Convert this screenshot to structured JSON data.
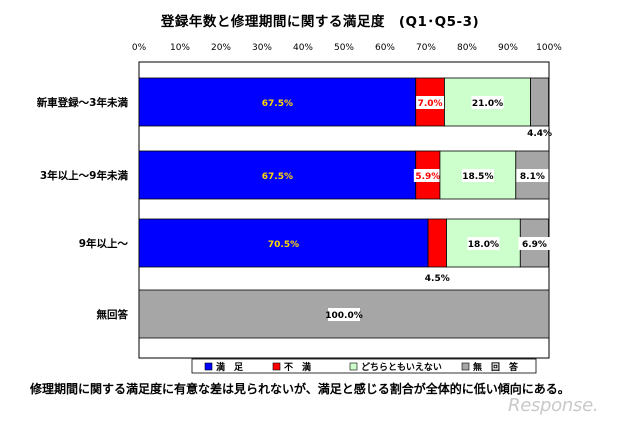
{
  "chart_data": {
    "type": "bar",
    "orientation": "horizontal",
    "stacked": true,
    "title": "登録年数と修理期間に関する満足度　(Q1･Q5-3)",
    "x_tick_labels": [
      "0%",
      "10%",
      "20%",
      "30%",
      "40%",
      "50%",
      "60%",
      "70%",
      "80%",
      "90%",
      "100%"
    ],
    "xlim": [
      0,
      100
    ],
    "categories": [
      "新車登録～3年未満",
      "3年以上～9年未満",
      "9年以上～",
      "無回答"
    ],
    "series": [
      {
        "name": "満　足",
        "color": "#0000ff",
        "values": [
          67.5,
          67.5,
          70.5,
          0
        ],
        "labels": [
          "67.5%",
          "67.5%",
          "70.5%",
          ""
        ]
      },
      {
        "name": "不　満",
        "color": "#ff0000",
        "values": [
          7.0,
          5.9,
          4.5,
          0
        ],
        "labels": [
          "7.0%",
          "5.9%",
          "4.5%",
          ""
        ]
      },
      {
        "name": "どちらともいえない",
        "color": "#ccffcc",
        "values": [
          21.0,
          18.5,
          18.0,
          0
        ],
        "labels": [
          "21.0%",
          "18.5%",
          "18.0%",
          ""
        ]
      },
      {
        "name": "無　回　答",
        "color": "#a6a6a6",
        "values": [
          4.4,
          8.1,
          6.9,
          100.0
        ],
        "labels": [
          "4.4%",
          "8.1%",
          "6.9%",
          "100.0%"
        ]
      }
    ],
    "legend_position": "bottom",
    "grid": false
  },
  "note": "修理期間に関する満足度に有意な差は見られないが、満足と感じる割合が全体的に低い傾向にある。",
  "watermark": "Response."
}
